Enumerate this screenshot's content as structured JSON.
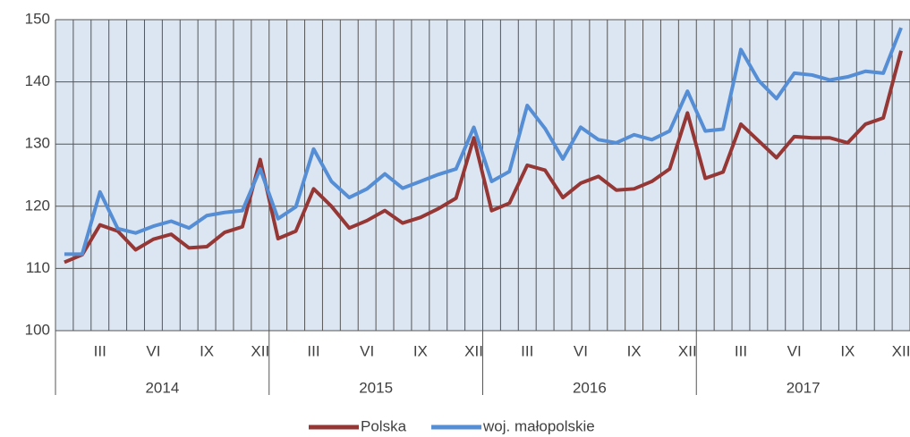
{
  "chart_data": {
    "type": "line",
    "categories": [
      null,
      null,
      "III",
      null,
      null,
      "VI",
      null,
      null,
      "IX",
      null,
      null,
      "XII",
      null,
      null,
      "III",
      null,
      null,
      "VI",
      null,
      null,
      "IX",
      null,
      null,
      "XII",
      null,
      null,
      "III",
      null,
      null,
      "VI",
      null,
      null,
      "IX",
      null,
      null,
      "XII",
      null,
      null,
      "III",
      null,
      null,
      "VI",
      null,
      null,
      "IX",
      null,
      null,
      "XII"
    ],
    "years": [
      "2014",
      "2015",
      "2016",
      "2017"
    ],
    "series": [
      {
        "name": "Polska",
        "color": "#953735",
        "values": [
          111,
          112.2,
          117,
          116,
          113,
          114.7,
          115.5,
          113.3,
          113.5,
          115.8,
          116.7,
          127.5,
          114.8,
          116,
          122.8,
          120,
          116.5,
          117.7,
          119.3,
          117.3,
          118.2,
          119.6,
          121.3,
          131,
          119.3,
          120.5,
          126.6,
          125.8,
          121.4,
          123.7,
          124.8,
          122.6,
          122.8,
          124,
          126,
          135,
          124.5,
          125.5,
          133.2,
          130.5,
          127.8,
          131.2,
          131,
          131,
          130.2,
          133.2,
          134.2,
          145
        ]
      },
      {
        "name": "woj. małopolskie",
        "color": "#558ed5",
        "values": [
          112.3,
          112.3,
          122.3,
          116.4,
          115.7,
          116.8,
          117.6,
          116.5,
          118.5,
          119,
          119.3,
          126,
          118,
          119.9,
          129.2,
          124,
          121.4,
          122.8,
          125.2,
          122.9,
          124,
          125.1,
          126,
          132.7,
          124,
          125.6,
          136.2,
          132.5,
          127.6,
          132.7,
          130.7,
          130.2,
          131.5,
          130.7,
          132.1,
          138.5,
          132.1,
          132.4,
          145.2,
          140.2,
          137.3,
          141.4,
          141.1,
          140.3,
          140.8,
          141.7,
          141.4,
          148.7
        ]
      }
    ],
    "ylim": [
      100,
      150
    ],
    "yticks": [
      100,
      110,
      120,
      130,
      140,
      150
    ],
    "grid": true,
    "legend": "bottom"
  }
}
